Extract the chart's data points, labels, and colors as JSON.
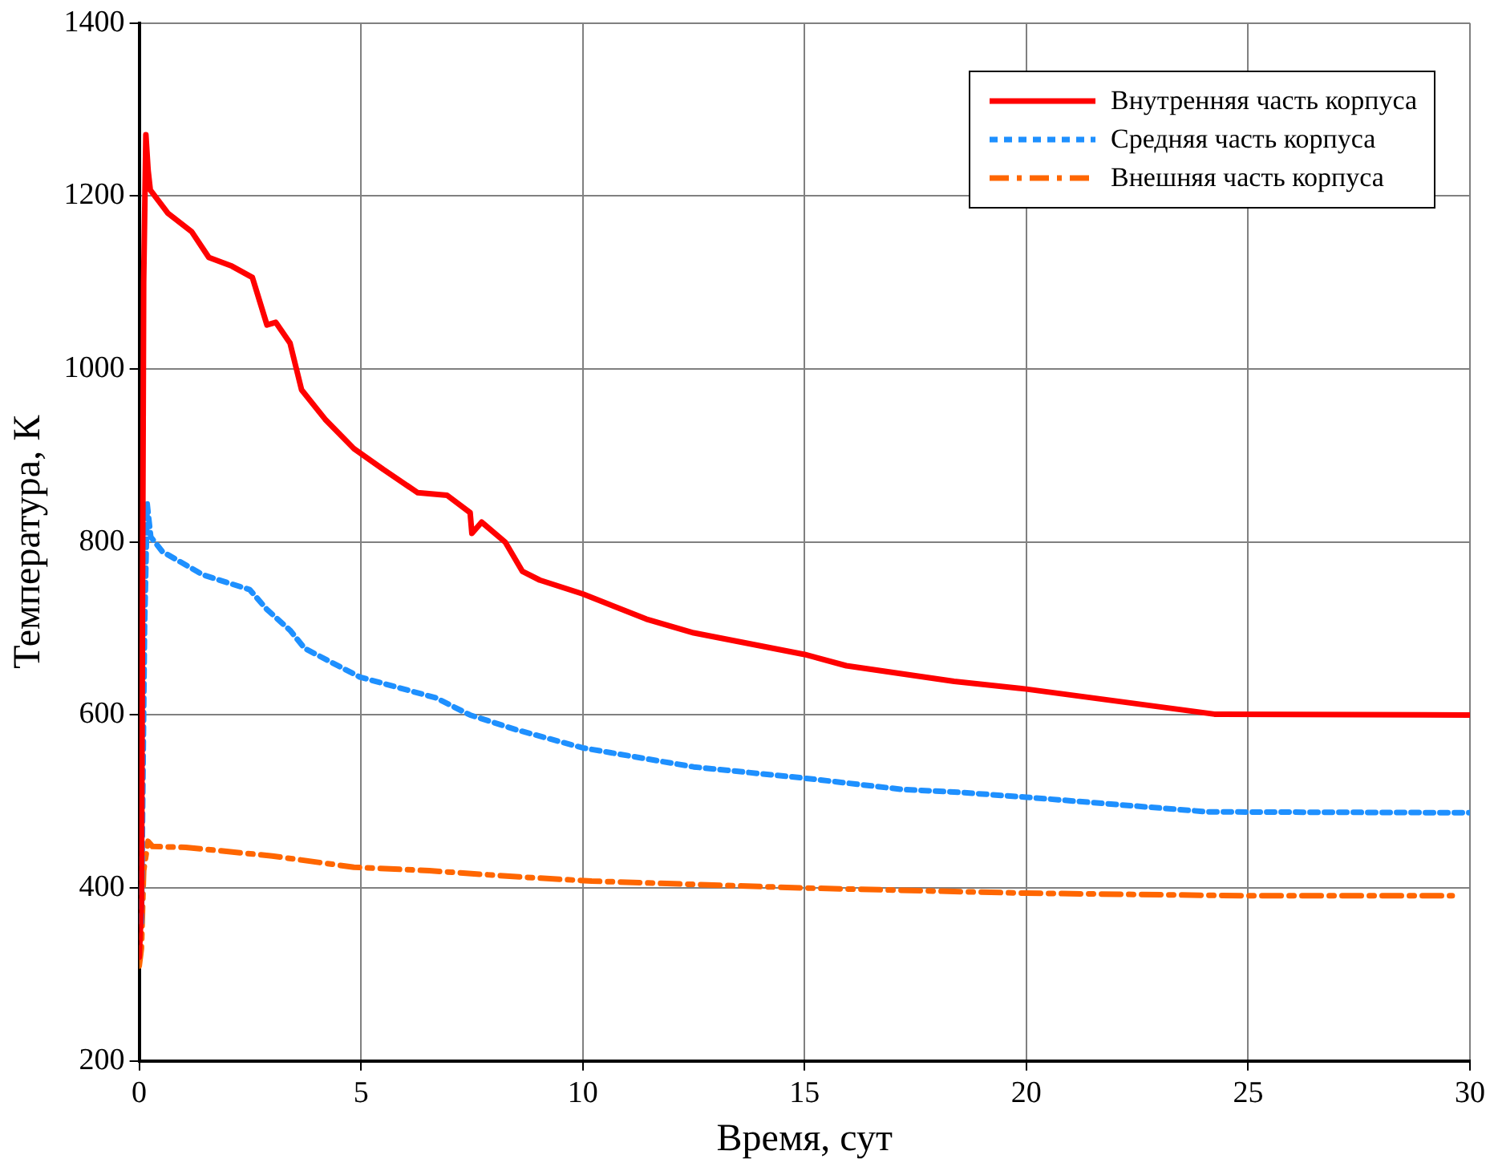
{
  "chart_data": {
    "type": "line",
    "xlabel": "Время, сут",
    "ylabel": "Температура, К",
    "xlim": [
      0,
      30
    ],
    "xticks": [
      0,
      5,
      10,
      15,
      20,
      25,
      30
    ],
    "ylim": [
      200,
      1400
    ],
    "yticks": [
      200,
      400,
      600,
      800,
      1000,
      1200,
      1400
    ],
    "grid": true,
    "legend": "top right",
    "marker": "none",
    "series": [
      {
        "name": "Внутренняя часть корпуса",
        "color": "#ff0000",
        "line_style": "solid",
        "x": [
          0,
          0.05,
          0.1,
          0.15,
          0.2,
          0.25,
          0.65,
          1.18,
          1.57,
          2.09,
          2.55,
          2.88,
          3.08,
          3.4,
          3.66,
          4.19,
          4.84,
          5.5,
          6.28,
          6.94,
          7.46,
          7.5,
          7.72,
          8.25,
          8.64,
          9.03,
          10,
          11.43,
          12.5,
          15,
          15.94,
          18.37,
          20,
          24.24,
          30
        ],
        "values": [
          320,
          380,
          1100,
          1271,
          1230,
          1207,
          1180,
          1159,
          1129,
          1119,
          1106,
          1051,
          1054,
          1030,
          976,
          942,
          908,
          884,
          857,
          854,
          834,
          810,
          823,
          800,
          766,
          756,
          740,
          711,
          695,
          670,
          657,
          639,
          630,
          601,
          600
        ]
      },
      {
        "name": "Средняя часть корпуса",
        "color": "#1e90ff",
        "line_style": "dotted",
        "x": [
          0.05,
          0.12,
          0.18,
          0.26,
          0.52,
          1.44,
          2.49,
          2.88,
          3.4,
          3.73,
          4.97,
          6.68,
          7.46,
          8.5,
          10,
          12.5,
          15,
          17.2,
          18.37,
          20,
          22.4,
          24.1,
          30
        ],
        "values": [
          360,
          700,
          844,
          806,
          789,
          762,
          745,
          722,
          698,
          677,
          644,
          620,
          600,
          583,
          562,
          540,
          527,
          514,
          511,
          505,
          495,
          488,
          487
        ]
      },
      {
        "name": "Внешняя часть корпуса",
        "color": "#ff6600",
        "line_style": "dashed",
        "x": [
          0,
          0.05,
          0.1,
          0.2,
          0.3,
          1.05,
          3.0,
          4.84,
          6.54,
          8.5,
          10.2,
          15,
          20,
          25,
          29.6
        ],
        "values": [
          310,
          330,
          420,
          454,
          448,
          447,
          437,
          424,
          420,
          413,
          408,
          400,
          394,
          391,
          391
        ]
      }
    ]
  }
}
